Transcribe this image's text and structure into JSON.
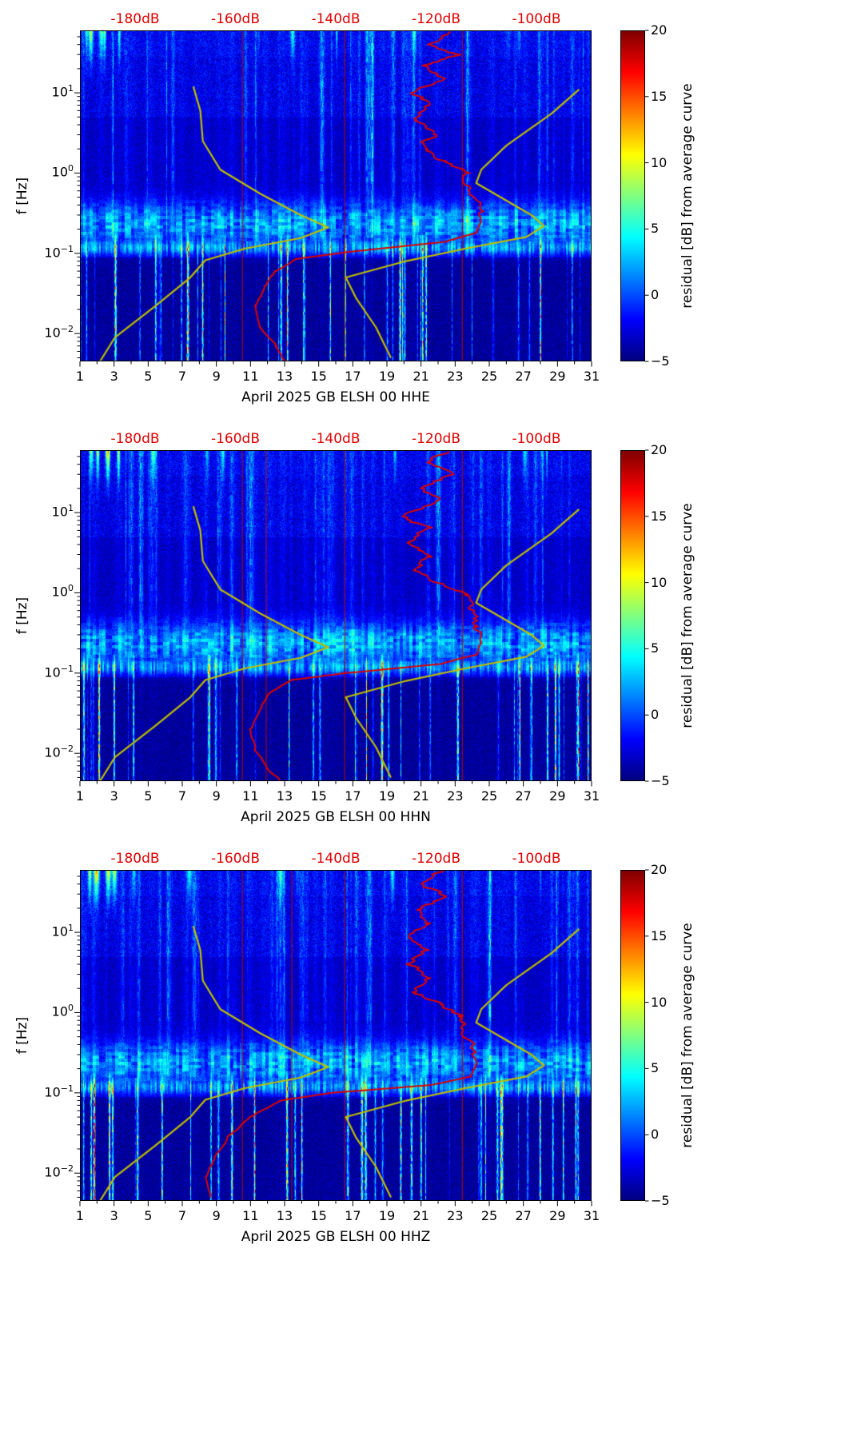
{
  "page": {
    "background": "#ffffff"
  },
  "chart_data": [
    {
      "type": "heatmap",
      "subtype": "spectrogram",
      "xlabel": "April 2025 GB ELSH 00 HHE",
      "ylabel": "f [Hz]",
      "x_ticks": [
        "1",
        "3",
        "5",
        "7",
        "9",
        "11",
        "13",
        "15",
        "17",
        "19",
        "21",
        "23",
        "25",
        "27",
        "29",
        "31"
      ],
      "x_range_days": [
        1,
        31
      ],
      "y_scale": "log",
      "y_ticks": [
        {
          "exp": "1",
          "f": 10
        },
        {
          "exp": "0",
          "f": 1
        },
        {
          "exp": "−1",
          "f": 0.1
        },
        {
          "exp": "−2",
          "f": 0.01
        }
      ],
      "y_range_hz": [
        0.0045,
        60
      ],
      "colorbar": {
        "label": "residual [dB] from average curve",
        "ticks": [
          "20",
          "15",
          "10",
          "5",
          "0",
          "−5"
        ],
        "tick_values": [
          20,
          15,
          10,
          5,
          0,
          -5
        ],
        "range": [
          -5,
          20
        ],
        "colormap": "jet",
        "stops": [
          {
            "color": "#00007f",
            "pos": 0
          },
          {
            "color": "#0000ff",
            "pos": 12.5
          },
          {
            "color": "#00ffff",
            "pos": 37.5
          },
          {
            "color": "#80ff80",
            "pos": 50
          },
          {
            "color": "#ffff00",
            "pos": 62.5
          },
          {
            "color": "#ff0000",
            "pos": 87.5
          },
          {
            "color": "#7f0000",
            "pos": 100
          }
        ]
      },
      "top_axis": {
        "color": "#dd0000",
        "labels": [
          "-180dB",
          "-160dB",
          "-140dB",
          "-120dB",
          "-100dB"
        ],
        "values_db": [
          -180,
          -160,
          -140,
          -120,
          -100
        ],
        "range_db": [
          -191,
          -89
        ]
      },
      "overlays": {
        "average_psd": {
          "color": "#dd0000",
          "points_db_hz": [
            [
              -117,
              58
            ],
            [
              -121,
              40
            ],
            [
              -116,
              30
            ],
            [
              -122,
              22
            ],
            [
              -119,
              15
            ],
            [
              -125,
              10
            ],
            [
              -121,
              7
            ],
            [
              -124,
              4.5
            ],
            [
              -121,
              3
            ],
            [
              -123,
              2
            ],
            [
              -118,
              1.4
            ],
            [
              -114,
              1.0
            ],
            [
              -113,
              0.65
            ],
            [
              -112,
              0.4
            ],
            [
              -111,
              0.25
            ],
            [
              -112,
              0.18
            ],
            [
              -118,
              0.14
            ],
            [
              -137,
              0.105
            ],
            [
              -148,
              0.085
            ],
            [
              -152,
              0.06
            ],
            [
              -154,
              0.04
            ],
            [
              -156,
              0.022
            ],
            [
              -155,
              0.012
            ],
            [
              -152,
              0.007
            ],
            [
              -150,
              0.0045
            ]
          ]
        },
        "low_noise_model": {
          "color": "#bfbf00",
          "points_db_hz": [
            [
              -168.4,
              12
            ],
            [
              -167,
              6
            ],
            [
              -166.5,
              2.5
            ],
            [
              -163,
              1.1
            ],
            [
              -155,
              0.55
            ],
            [
              -147,
              0.3
            ],
            [
              -141.5,
              0.21
            ],
            [
              -147,
              0.155
            ],
            [
              -158,
              0.115
            ],
            [
              -166,
              0.082
            ],
            [
              -169,
              0.05
            ],
            [
              -176,
              0.022
            ],
            [
              -184,
              0.009
            ],
            [
              -187,
              0.0045
            ]
          ]
        },
        "high_noise_model": {
          "color": "#bfbf00",
          "points_db_hz": [
            [
              -91.5,
              11
            ],
            [
              -97,
              5.5
            ],
            [
              -106,
              2.2
            ],
            [
              -111,
              1.1
            ],
            [
              -112,
              0.75
            ],
            [
              -101,
              0.3
            ],
            [
              -98.5,
              0.22
            ],
            [
              -102,
              0.16
            ],
            [
              -114,
              0.115
            ],
            [
              -126,
              0.08
            ],
            [
              -138,
              0.05
            ],
            [
              -136,
              0.028
            ],
            [
              -132,
              0.012
            ],
            [
              -129,
              0.005
            ]
          ]
        }
      },
      "red_vertical_lines_days": [
        10.5,
        16.5,
        23.4
      ],
      "texture_seed": 11
    },
    {
      "type": "heatmap",
      "subtype": "spectrogram",
      "xlabel": "April 2025 GB ELSH 00 HHN",
      "ylabel": "f [Hz]",
      "x_ticks": [
        "1",
        "3",
        "5",
        "7",
        "9",
        "11",
        "13",
        "15",
        "17",
        "19",
        "21",
        "23",
        "25",
        "27",
        "29",
        "31"
      ],
      "x_range_days": [
        1,
        31
      ],
      "y_scale": "log",
      "y_ticks": [
        {
          "exp": "1",
          "f": 10
        },
        {
          "exp": "0",
          "f": 1
        },
        {
          "exp": "−1",
          "f": 0.1
        },
        {
          "exp": "−2",
          "f": 0.01
        }
      ],
      "y_range_hz": [
        0.0045,
        60
      ],
      "colorbar": {
        "label": "residual [dB] from average curve",
        "ticks": [
          "20",
          "15",
          "10",
          "5",
          "0",
          "−5"
        ],
        "tick_values": [
          20,
          15,
          10,
          5,
          0,
          -5
        ],
        "range": [
          -5,
          20
        ],
        "colormap": "jet",
        "stops": [
          {
            "color": "#00007f",
            "pos": 0
          },
          {
            "color": "#0000ff",
            "pos": 12.5
          },
          {
            "color": "#00ffff",
            "pos": 37.5
          },
          {
            "color": "#80ff80",
            "pos": 50
          },
          {
            "color": "#ffff00",
            "pos": 62.5
          },
          {
            "color": "#ff0000",
            "pos": 87.5
          },
          {
            "color": "#7f0000",
            "pos": 100
          }
        ]
      },
      "top_axis": {
        "color": "#dd0000",
        "labels": [
          "-180dB",
          "-160dB",
          "-140dB",
          "-120dB",
          "-100dB"
        ],
        "values_db": [
          -180,
          -160,
          -140,
          -120,
          -100
        ],
        "range_db": [
          -191,
          -89
        ]
      },
      "overlays": {
        "average_psd": {
          "color": "#dd0000",
          "points_db_hz": [
            [
              -118,
              58
            ],
            [
              -122,
              42
            ],
            [
              -117,
              30
            ],
            [
              -123,
              20
            ],
            [
              -120,
              14
            ],
            [
              -126,
              9
            ],
            [
              -122,
              6.5
            ],
            [
              -125,
              4.2
            ],
            [
              -122,
              2.8
            ],
            [
              -124,
              1.9
            ],
            [
              -119,
              1.3
            ],
            [
              -114,
              0.95
            ],
            [
              -113,
              0.6
            ],
            [
              -112,
              0.38
            ],
            [
              -111,
              0.24
            ],
            [
              -112,
              0.17
            ],
            [
              -119,
              0.13
            ],
            [
              -138,
              0.1
            ],
            [
              -149,
              0.082
            ],
            [
              -153,
              0.058
            ],
            [
              -155,
              0.038
            ],
            [
              -157,
              0.02
            ],
            [
              -156,
              0.011
            ],
            [
              -153,
              0.006
            ],
            [
              -151,
              0.0045
            ]
          ]
        },
        "low_noise_model": {
          "color": "#bfbf00",
          "points_db_hz": [
            [
              -168.4,
              12
            ],
            [
              -167,
              6
            ],
            [
              -166.5,
              2.5
            ],
            [
              -163,
              1.1
            ],
            [
              -155,
              0.55
            ],
            [
              -147,
              0.3
            ],
            [
              -141.5,
              0.21
            ],
            [
              -147,
              0.155
            ],
            [
              -158,
              0.115
            ],
            [
              -166,
              0.082
            ],
            [
              -169,
              0.05
            ],
            [
              -176,
              0.022
            ],
            [
              -184,
              0.009
            ],
            [
              -187,
              0.0045
            ]
          ]
        },
        "high_noise_model": {
          "color": "#bfbf00",
          "points_db_hz": [
            [
              -91.5,
              11
            ],
            [
              -97,
              5.5
            ],
            [
              -106,
              2.2
            ],
            [
              -111,
              1.1
            ],
            [
              -112,
              0.75
            ],
            [
              -101,
              0.3
            ],
            [
              -98.5,
              0.22
            ],
            [
              -102,
              0.16
            ],
            [
              -114,
              0.115
            ],
            [
              -126,
              0.08
            ],
            [
              -138,
              0.05
            ],
            [
              -136,
              0.028
            ],
            [
              -132,
              0.012
            ],
            [
              -129,
              0.005
            ]
          ]
        }
      },
      "red_vertical_lines_days": [
        10.5,
        11.9,
        16.5,
        23.4
      ],
      "texture_seed": 23
    },
    {
      "type": "heatmap",
      "subtype": "spectrogram",
      "xlabel": "April 2025 GB ELSH 00 HHZ",
      "ylabel": "f [Hz]",
      "x_ticks": [
        "1",
        "3",
        "5",
        "7",
        "9",
        "11",
        "13",
        "15",
        "17",
        "19",
        "21",
        "23",
        "25",
        "27",
        "29",
        "31"
      ],
      "x_range_days": [
        1,
        31
      ],
      "y_scale": "log",
      "y_ticks": [
        {
          "exp": "1",
          "f": 10
        },
        {
          "exp": "0",
          "f": 1
        },
        {
          "exp": "−1",
          "f": 0.1
        },
        {
          "exp": "−2",
          "f": 0.01
        }
      ],
      "y_range_hz": [
        0.0045,
        60
      ],
      "colorbar": {
        "label": "residual [dB] from average curve",
        "ticks": [
          "20",
          "15",
          "10",
          "5",
          "0",
          "−5"
        ],
        "tick_values": [
          20,
          15,
          10,
          5,
          0,
          -5
        ],
        "range": [
          -5,
          20
        ],
        "colormap": "jet",
        "stops": [
          {
            "color": "#00007f",
            "pos": 0
          },
          {
            "color": "#0000ff",
            "pos": 12.5
          },
          {
            "color": "#00ffff",
            "pos": 37.5
          },
          {
            "color": "#80ff80",
            "pos": 50
          },
          {
            "color": "#ffff00",
            "pos": 62.5
          },
          {
            "color": "#ff0000",
            "pos": 87.5
          },
          {
            "color": "#7f0000",
            "pos": 100
          }
        ]
      },
      "top_axis": {
        "color": "#dd0000",
        "labels": [
          "-180dB",
          "-160dB",
          "-140dB",
          "-120dB",
          "-100dB"
        ],
        "values_db": [
          -180,
          -160,
          -140,
          -120,
          -100
        ],
        "range_db": [
          -191,
          -89
        ]
      },
      "overlays": {
        "average_psd": {
          "color": "#dd0000",
          "points_db_hz": [
            [
              -119,
              58
            ],
            [
              -123,
              40
            ],
            [
              -118,
              28
            ],
            [
              -124,
              19
            ],
            [
              -121,
              13
            ],
            [
              -126,
              8.5
            ],
            [
              -122,
              6
            ],
            [
              -125,
              4
            ],
            [
              -122,
              2.7
            ],
            [
              -124,
              1.8
            ],
            [
              -119,
              1.25
            ],
            [
              -115,
              0.9
            ],
            [
              -114,
              0.58
            ],
            [
              -113,
              0.36
            ],
            [
              -112,
              0.23
            ],
            [
              -113,
              0.16
            ],
            [
              -121,
              0.125
            ],
            [
              -141,
              0.1
            ],
            [
              -151,
              0.08
            ],
            [
              -157,
              0.05
            ],
            [
              -161,
              0.03
            ],
            [
              -164,
              0.016
            ],
            [
              -166,
              0.009
            ],
            [
              -165,
              0.005
            ]
          ]
        },
        "low_noise_model": {
          "color": "#bfbf00",
          "points_db_hz": [
            [
              -168.4,
              12
            ],
            [
              -167,
              6
            ],
            [
              -166.5,
              2.5
            ],
            [
              -163,
              1.1
            ],
            [
              -155,
              0.55
            ],
            [
              -147,
              0.3
            ],
            [
              -141.5,
              0.21
            ],
            [
              -147,
              0.155
            ],
            [
              -158,
              0.115
            ],
            [
              -166,
              0.082
            ],
            [
              -169,
              0.05
            ],
            [
              -176,
              0.022
            ],
            [
              -184,
              0.009
            ],
            [
              -187,
              0.0045
            ]
          ]
        },
        "high_noise_model": {
          "color": "#bfbf00",
          "points_db_hz": [
            [
              -91.5,
              11
            ],
            [
              -97,
              5.5
            ],
            [
              -106,
              2.2
            ],
            [
              -111,
              1.1
            ],
            [
              -112,
              0.75
            ],
            [
              -101,
              0.3
            ],
            [
              -98.5,
              0.22
            ],
            [
              -102,
              0.16
            ],
            [
              -114,
              0.115
            ],
            [
              -126,
              0.08
            ],
            [
              -138,
              0.05
            ],
            [
              -136,
              0.028
            ],
            [
              -132,
              0.012
            ],
            [
              -129,
              0.005
            ]
          ]
        }
      },
      "red_vertical_lines_days": [
        10.5,
        13.4,
        16.5,
        23.4
      ],
      "texture_seed": 37
    }
  ]
}
